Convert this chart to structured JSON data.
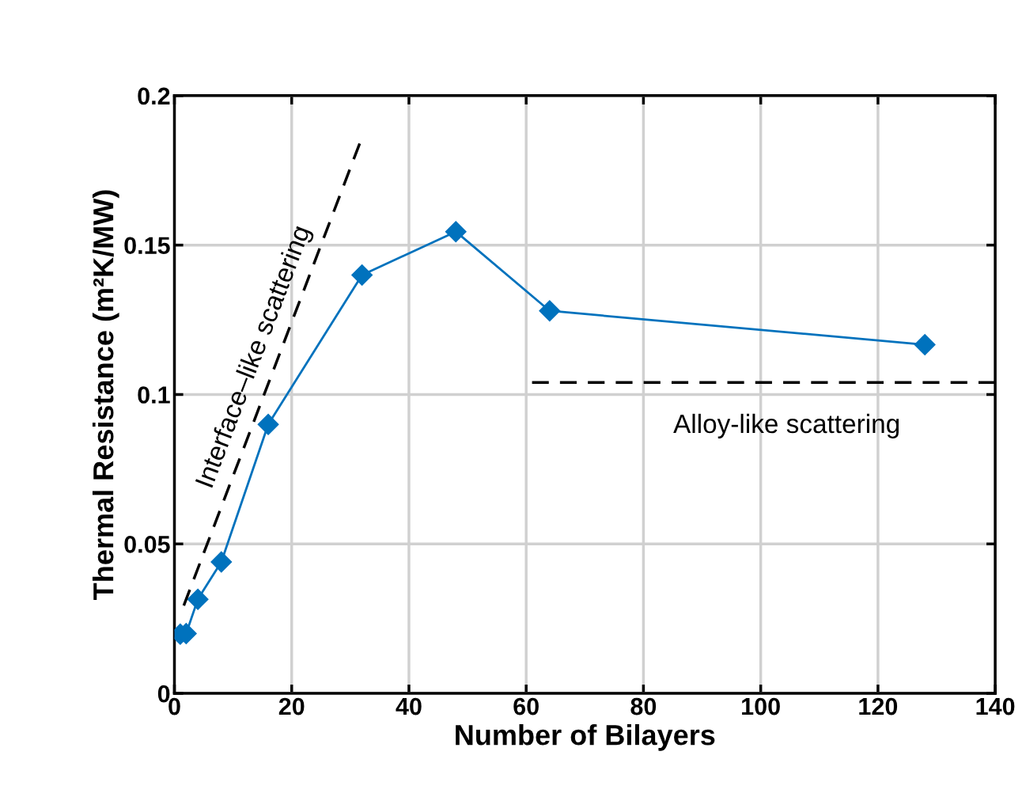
{
  "chart_data": {
    "type": "line",
    "xlabel": "Number of Bilayers",
    "ylabel": "Thermal Resistance (m²K/MW)",
    "xlim": [
      0,
      140
    ],
    "xticks": [
      0,
      20,
      40,
      60,
      80,
      100,
      120,
      140
    ],
    "ylim": [
      0,
      0.2
    ],
    "yticks": [
      0,
      0.05,
      0.1,
      0.15,
      0.2
    ],
    "grid": true,
    "series": [
      {
        "color": "#0072bd",
        "marker": "diamond",
        "line_style": "solid",
        "x": [
          1,
          2,
          4,
          8,
          16,
          32,
          48,
          64,
          128
        ],
        "values": [
          0.0198,
          0.02,
          0.0315,
          0.044,
          0.09,
          0.14,
          0.1545,
          0.128,
          0.1167
        ]
      },
      {
        "color": "#000000",
        "marker": "none",
        "line_style": "dashed",
        "x": [
          1.6,
          31.6
        ],
        "values": [
          0.0294,
          0.184
        ]
      },
      {
        "color": "#000000",
        "marker": "none",
        "line_style": "dashed",
        "x": [
          61,
          140
        ],
        "values": [
          0.104,
          0.104
        ]
      }
    ],
    "annotations": [
      "Interface–like scattering",
      "Alloy-like scattering"
    ]
  }
}
